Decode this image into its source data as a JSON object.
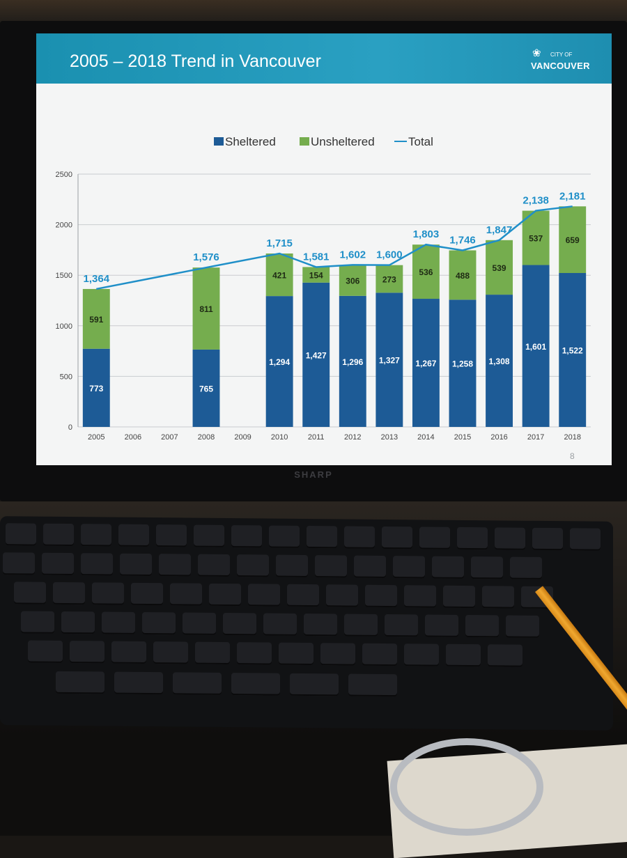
{
  "slide": {
    "title": "2005 – 2018 Trend in Vancouver",
    "logo_small": "CITY OF",
    "logo_big": "VANCOUVER",
    "page_number": "8"
  },
  "monitor": {
    "brand": "SHARP"
  },
  "colors": {
    "sheltered": "#1d5b96",
    "unsheltered": "#75ad4e",
    "total": "#1f8fc8",
    "header": "#1f93b6"
  },
  "chart_data": {
    "type": "bar",
    "stacked": true,
    "categories": [
      "2005",
      "2006",
      "2007",
      "2008",
      "2009",
      "2010",
      "2011",
      "2012",
      "2013",
      "2014",
      "2015",
      "2016",
      "2017",
      "2018"
    ],
    "series": [
      {
        "name": "Sheltered",
        "values": [
          773,
          null,
          null,
          765,
          null,
          1294,
          1427,
          1296,
          1327,
          1267,
          1258,
          1308,
          1601,
          1522
        ]
      },
      {
        "name": "Unsheltered",
        "values": [
          591,
          null,
          null,
          811,
          null,
          421,
          154,
          306,
          273,
          536,
          488,
          539,
          537,
          659
        ]
      }
    ],
    "line_series": {
      "name": "Total",
      "values": [
        1364,
        null,
        null,
        1576,
        null,
        1715,
        1581,
        1602,
        1600,
        1803,
        1746,
        1847,
        2138,
        2181
      ]
    },
    "inner_labels": {
      "sheltered": [
        "773",
        "",
        "",
        "765",
        "",
        "1,294",
        "1,427",
        "1,296",
        "1,327",
        "1,267",
        "1,258",
        "1,308",
        "1,601",
        "1,522"
      ],
      "unsheltered": [
        "591",
        "",
        "",
        "811",
        "",
        "421",
        "154",
        "306",
        "273",
        "536",
        "488",
        "539",
        "537",
        "659"
      ],
      "total": [
        "1,364",
        "",
        "",
        "1,576",
        "",
        "1,715",
        "1,581",
        "1,602",
        "1,600",
        "1,803",
        "1,746",
        "1,847",
        "2,138",
        "2,181"
      ]
    },
    "y_ticks": [
      0,
      500,
      1000,
      1500,
      2000,
      2500
    ],
    "ylim": [
      0,
      2500
    ],
    "grid": true,
    "legend": "top-center",
    "title": "",
    "xlabel": "",
    "ylabel": ""
  }
}
